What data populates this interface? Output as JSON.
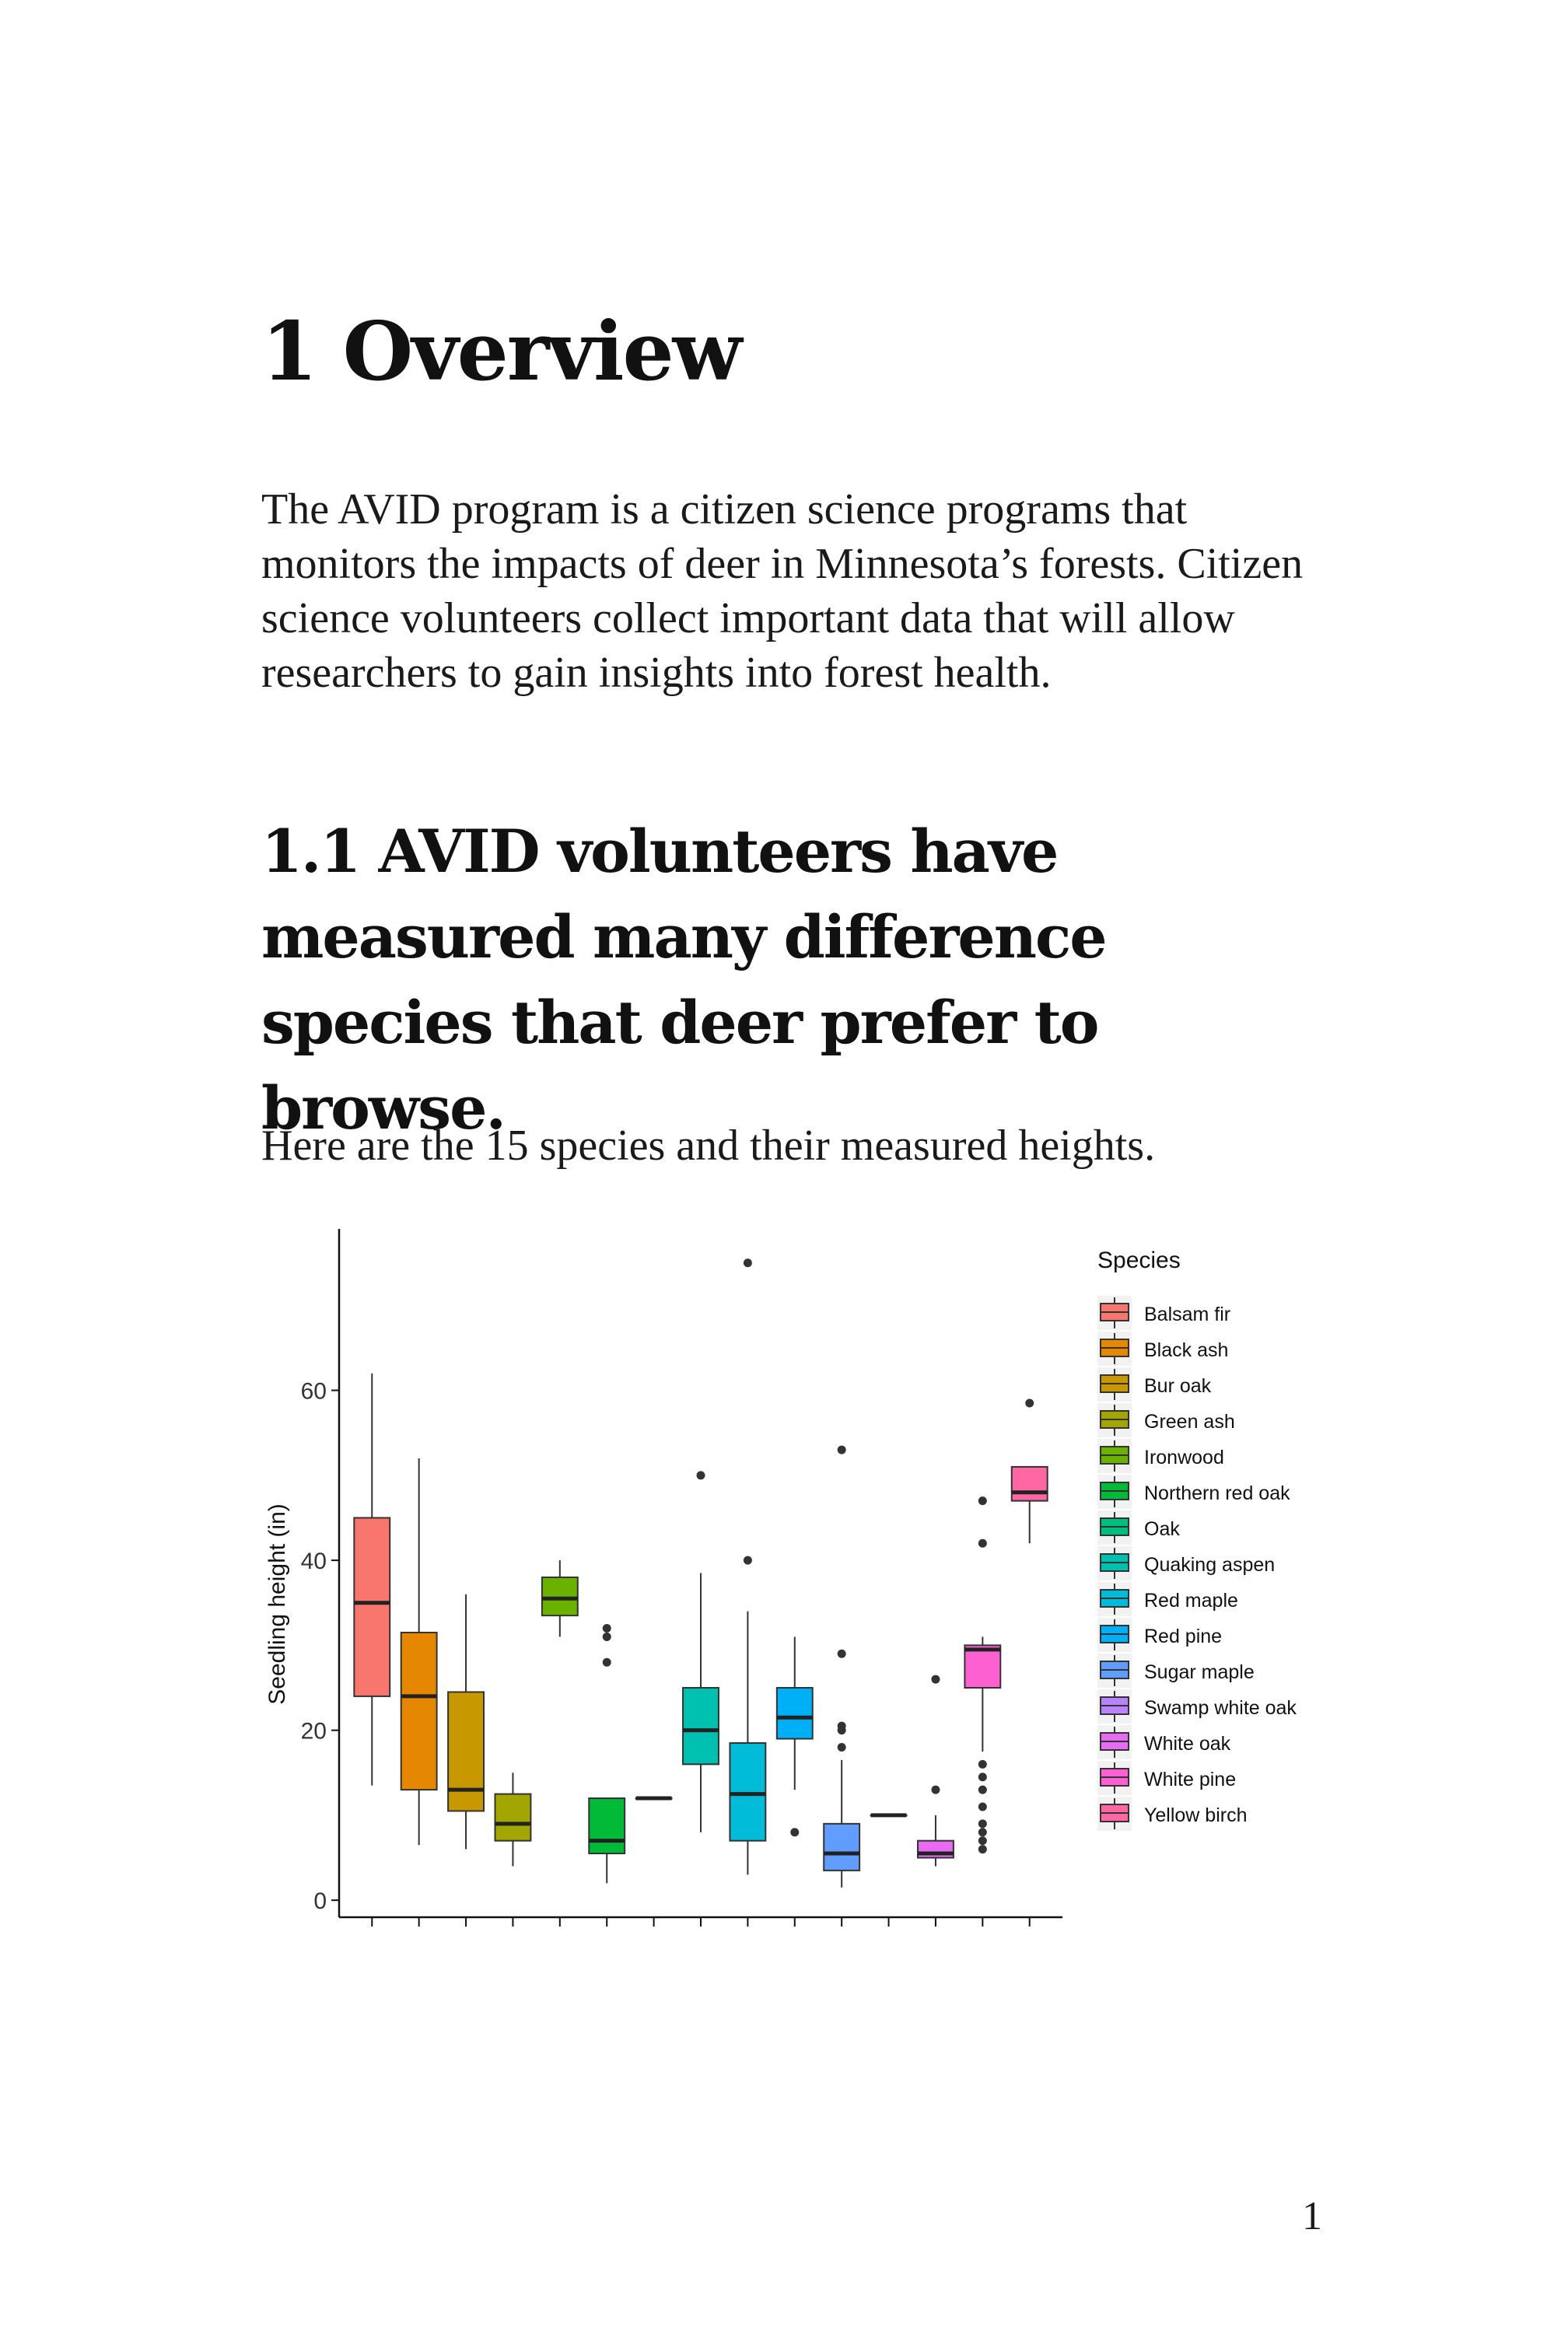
{
  "document": {
    "heading": "1 Overview",
    "intro": "The AVID program is a citizen science programs that monitors the impacts of deer in Minnesota’s forests. Citizen science volunteers collect important data that will allow researchers to gain insights into forest health.",
    "subheading": "1.1 AVID volunteers have measured many difference species that deer prefer to browse.",
    "lead": "Here are the 15 species and their measured heights.",
    "page_number": "1"
  },
  "chart_data": {
    "type": "boxplot",
    "title": "",
    "xlabel": "",
    "ylabel": "Seedling height (in)",
    "ylim": [
      -2,
      79
    ],
    "yticks": [
      0,
      20,
      40,
      60
    ],
    "legend_title": "Species",
    "legend_position": "right",
    "grid": false,
    "series": [
      {
        "name": "Balsam fir",
        "color": "#F8766D",
        "whisker_low": 13.5,
        "q1": 24,
        "median": 35,
        "q3": 45,
        "whisker_high": 62,
        "outliers": []
      },
      {
        "name": "Black ash",
        "color": "#E58700",
        "whisker_low": 6.5,
        "q1": 13,
        "median": 24,
        "q3": 31.5,
        "whisker_high": 52,
        "outliers": []
      },
      {
        "name": "Bur oak",
        "color": "#C99800",
        "whisker_low": 6,
        "q1": 10.5,
        "median": 13,
        "q3": 24.5,
        "whisker_high": 36,
        "outliers": []
      },
      {
        "name": "Green ash",
        "color": "#A3A500",
        "whisker_low": 4,
        "q1": 7,
        "median": 9,
        "q3": 12.5,
        "whisker_high": 15,
        "outliers": []
      },
      {
        "name": "Ironwood",
        "color": "#6BB100",
        "whisker_low": 31,
        "q1": 33.5,
        "median": 35.5,
        "q3": 38,
        "whisker_high": 40,
        "outliers": []
      },
      {
        "name": "Northern red oak",
        "color": "#00BA38",
        "whisker_low": 2,
        "q1": 5.5,
        "median": 7,
        "q3": 12,
        "whisker_high": 12,
        "outliers": [
          28,
          31,
          32
        ]
      },
      {
        "name": "Oak",
        "color": "#00BF7D",
        "whisker_low": 12,
        "q1": 12,
        "median": 12,
        "q3": 12,
        "whisker_high": 12,
        "outliers": []
      },
      {
        "name": "Quaking aspen",
        "color": "#00C0AF",
        "whisker_low": 8,
        "q1": 16,
        "median": 20,
        "q3": 25,
        "whisker_high": 38.5,
        "outliers": [
          50
        ]
      },
      {
        "name": "Red maple",
        "color": "#00BCD8",
        "whisker_low": 3,
        "q1": 7,
        "median": 12.5,
        "q3": 18.5,
        "whisker_high": 34,
        "outliers": [
          40,
          75
        ]
      },
      {
        "name": "Red pine",
        "color": "#00B0F6",
        "whisker_low": 13,
        "q1": 19,
        "median": 21.5,
        "q3": 25,
        "whisker_high": 31,
        "outliers": [
          8
        ]
      },
      {
        "name": "Sugar maple",
        "color": "#619CFF",
        "whisker_low": 1.5,
        "q1": 3.5,
        "median": 5.5,
        "q3": 9,
        "whisker_high": 16.5,
        "outliers": [
          18,
          20,
          20.5,
          29,
          53
        ]
      },
      {
        "name": "Swamp white oak",
        "color": "#B983FF",
        "whisker_low": 10,
        "q1": 10,
        "median": 10,
        "q3": 10,
        "whisker_high": 10,
        "outliers": []
      },
      {
        "name": "White oak",
        "color": "#E76BF3",
        "whisker_low": 4,
        "q1": 5,
        "median": 5.5,
        "q3": 7,
        "whisker_high": 10,
        "outliers": [
          13,
          26
        ]
      },
      {
        "name": "White pine",
        "color": "#FD61D1",
        "whisker_low": 17.5,
        "q1": 25,
        "median": 29.5,
        "q3": 30,
        "whisker_high": 31,
        "outliers": [
          6,
          7,
          8,
          9,
          11,
          13,
          14.5,
          16,
          42,
          47
        ]
      },
      {
        "name": "Yellow birch",
        "color": "#FF67A4",
        "whisker_low": 42,
        "q1": 47,
        "median": 48,
        "q3": 51,
        "whisker_high": 51,
        "outliers": [
          58.5
        ]
      }
    ]
  }
}
